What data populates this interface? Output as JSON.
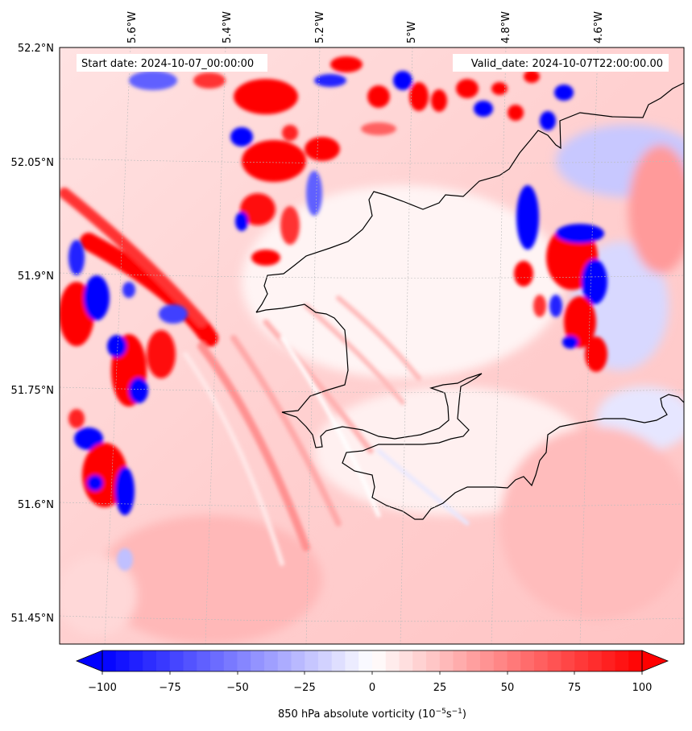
{
  "map": {
    "start_label": "Start date: 2024-10-07_00:00:00",
    "valid_label": "Valid_date: 2024-10-07T22:00:00.00",
    "lon_labels": [
      "5.6°W",
      "5.4°W",
      "5.2°W",
      "5°W",
      "4.8°W",
      "4.6°W"
    ],
    "lat_labels": [
      "52.2°N",
      "52.05°N",
      "51.9°N",
      "51.75°N",
      "51.6°N",
      "51.45°N"
    ],
    "colors": {
      "negative": "#0000ff",
      "neutral": "#ffffff",
      "positive": "#ff0000",
      "coastline": "#000000",
      "grid": "#bbbbbb"
    }
  },
  "colorbar": {
    "ticks": [
      "−100",
      "−75",
      "−50",
      "−25",
      "0",
      "25",
      "50",
      "75",
      "100"
    ],
    "label_main": "850 hPa absolute vorticity (10",
    "label_exp1": "−5",
    "label_mid": "s",
    "label_exp2": "−1",
    "label_end": ")"
  }
}
